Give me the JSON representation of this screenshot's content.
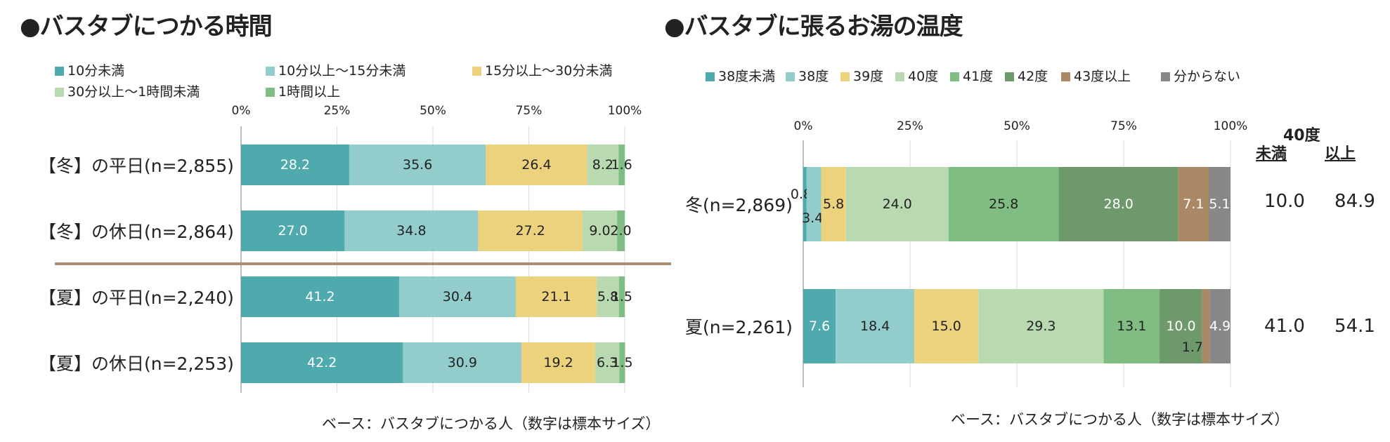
{
  "colors": {
    "c1": "#4eaaad",
    "c2": "#92cdcc",
    "c3": "#ecd27d",
    "c4": "#b9dab0",
    "c5": "#80bd82",
    "c6": "#6e9a6b",
    "c7": "#ab8865",
    "c8": "#888888",
    "divider": "#a99070",
    "axis": "#a6a6a6"
  },
  "chart_data": [
    {
      "type": "bar",
      "stacked": true,
      "orientation": "horizontal",
      "title": "●バスタブにつかる時間",
      "categories": [
        "【冬】の平日(n=2,855)",
        "【冬】の休日(n=2,864)",
        "【夏】の平日(n=2,240)",
        "【夏】の休日(n=2,253)"
      ],
      "series": [
        {
          "name": "10分未満",
          "color": "#4eaaad",
          "values": [
            28.2,
            27.0,
            41.2,
            42.2
          ]
        },
        {
          "name": "10分以上～15分未満",
          "color": "#92cdcc",
          "values": [
            35.6,
            34.8,
            30.4,
            30.9
          ]
        },
        {
          "name": "15分以上～30分未満",
          "color": "#ecd27d",
          "values": [
            26.4,
            27.2,
            21.1,
            19.2
          ]
        },
        {
          "name": "30分以上～1時間未満",
          "color": "#b9dab0",
          "values": [
            8.2,
            9.0,
            5.8,
            6.3
          ]
        },
        {
          "name": "1時間以上",
          "color": "#80bd82",
          "values": [
            1.6,
            2.0,
            1.5,
            1.5
          ]
        }
      ],
      "label_text": [
        [
          "28.2",
          "35.6",
          "26.4",
          "8.2",
          "1.6"
        ],
        [
          "27.0",
          "34.8",
          "27.2",
          "9.0",
          "2.0"
        ],
        [
          "41.2",
          "30.4",
          "21.1",
          "5.8",
          "1.5"
        ],
        [
          "42.2",
          "30.9",
          "19.2",
          "6.3",
          "1.5"
        ]
      ],
      "xticks": [
        "0%",
        "25%",
        "50%",
        "75%",
        "100%"
      ],
      "xlim": [
        0,
        100
      ],
      "legend_position": "top",
      "note": "ベース：バスタブにつかる人（数字は標本サイズ）"
    },
    {
      "type": "bar",
      "stacked": true,
      "orientation": "horizontal",
      "title": "●バスタブに張るお湯の温度",
      "categories": [
        "冬(n=2,869)",
        "夏(n=2,261)"
      ],
      "series": [
        {
          "name": "38度未満",
          "color": "#4eaaad",
          "values": [
            0.8,
            7.6
          ]
        },
        {
          "name": "38度",
          "color": "#92cdcc",
          "values": [
            3.4,
            18.4
          ]
        },
        {
          "name": "39度",
          "color": "#ecd27d",
          "values": [
            5.8,
            15.0
          ]
        },
        {
          "name": "40度",
          "color": "#b9dab0",
          "values": [
            24.0,
            29.3
          ]
        },
        {
          "name": "41度",
          "color": "#80bd82",
          "values": [
            25.8,
            13.1
          ]
        },
        {
          "name": "42度",
          "color": "#6e9a6b",
          "values": [
            28.0,
            10.0
          ]
        },
        {
          "name": "43度以上",
          "color": "#ab8865",
          "values": [
            7.1,
            1.7
          ]
        },
        {
          "name": "分からない",
          "color": "#888888",
          "values": [
            5.1,
            4.9
          ]
        }
      ],
      "label_text": [
        [
          "0.8",
          "3.4",
          "5.8",
          "24.0",
          "25.8",
          "28.0",
          "7.1",
          "5.1"
        ],
        [
          "7.6",
          "18.4",
          "15.0",
          "29.3",
          "13.1",
          "10.0",
          "1.7",
          "4.9"
        ]
      ],
      "xticks": [
        "0%",
        "25%",
        "50%",
        "75%",
        "100%"
      ],
      "xlim": [
        0,
        100
      ],
      "legend_position": "top",
      "summary": {
        "header_main": "40度",
        "header_left": "未満",
        "header_right": "以上",
        "rows": [
          {
            "under": "10.0",
            "over": "84.9"
          },
          {
            "under": "41.0",
            "over": "54.1"
          }
        ]
      },
      "note": "ベース：バスタブにつかる人（数字は標本サイズ）"
    }
  ]
}
